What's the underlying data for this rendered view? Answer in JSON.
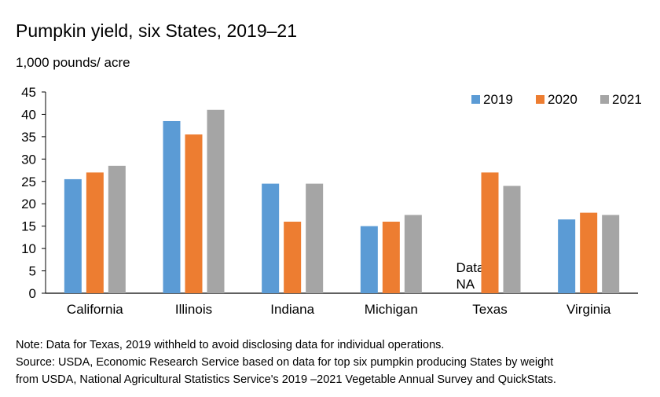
{
  "chart_data": {
    "type": "bar",
    "title": "Pumpkin yield, six States, 2019–21",
    "ylabel": "1,000 pounds/ acre",
    "xlabel": "",
    "ylim": [
      0,
      45
    ],
    "yticks": [
      0,
      5,
      10,
      15,
      20,
      25,
      30,
      35,
      40,
      45
    ],
    "categories": [
      "California",
      "Illinois",
      "Indiana",
      "Michigan",
      "Texas",
      "Virginia"
    ],
    "series": [
      {
        "name": "2019",
        "color": "#5b9bd5",
        "values": [
          25.5,
          38.5,
          24.5,
          15,
          null,
          16.5
        ]
      },
      {
        "name": "2020",
        "color": "#ed7d31",
        "values": [
          27,
          35.5,
          16,
          16,
          27,
          18
        ]
      },
      {
        "name": "2021",
        "color": "#a5a5a5",
        "values": [
          28.5,
          41,
          24.5,
          17.5,
          24,
          17.5
        ]
      }
    ],
    "legend_position": "top-right",
    "annotations": [
      {
        "category": "Texas",
        "series": "2019",
        "line1": "Data",
        "line2": "NA"
      }
    ]
  },
  "notes": {
    "line1": "Note: Data for Texas, 2019 withheld to avoid disclosing data for individual operations.",
    "line2": "Source: USDA, Economic Research Service based on data for top six pumpkin producing States by weight",
    "line3": "from USDA, National Agricultural Statistics Service's 2019 –2021 Vegetable Annual Survey and QuickStats."
  }
}
